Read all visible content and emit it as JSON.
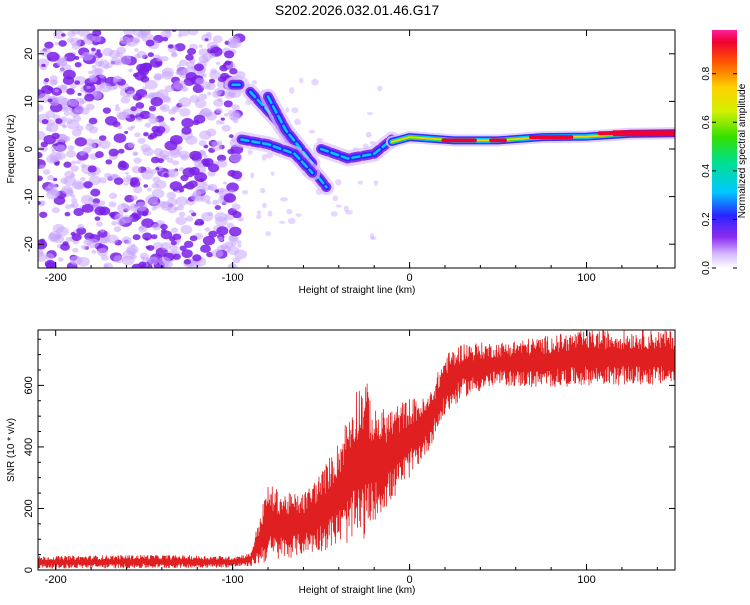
{
  "title": "S202.2026.032.01.46.G17",
  "colors": {
    "snr_line": "#e02020",
    "frame": "#000000",
    "scatter": "#c9a6ff",
    "scatter_dark": "#7a1ee8"
  },
  "chart_data": [
    {
      "type": "heatmap",
      "title": "S202.2026.032.01.46.G17",
      "xlabel": "Height of straight line (km)",
      "ylabel": "Frequency (Hz)",
      "xlim": [
        -210,
        150
      ],
      "ylim": [
        -25,
        25
      ],
      "xticks": [
        -200,
        -100,
        0,
        100
      ],
      "yticks": [
        -20,
        -10,
        0,
        10,
        20
      ],
      "colorbar": {
        "label": "Normalized spectral amplitude",
        "range": [
          0,
          0.98
        ],
        "ticks": [
          0.0,
          0.2,
          0.4,
          0.6,
          0.8
        ]
      },
      "features": [
        {
          "name": "noise-region",
          "x_range": [
            -210,
            -95
          ],
          "y_range": [
            -25,
            25
          ],
          "amplitude": 0.05
        },
        {
          "name": "dominant-ridge",
          "points": [
            [
              -10,
              1.5
            ],
            [
              0,
              2.5
            ],
            [
              25,
              1.8
            ],
            [
              50,
              1.8
            ],
            [
              75,
              2.5
            ],
            [
              100,
              2.6
            ],
            [
              125,
              3.2
            ],
            [
              150,
              3.3
            ]
          ],
          "amplitude": 0.95
        },
        {
          "name": "track-a",
          "points": [
            [
              -100,
              13.5
            ],
            [
              -95,
              13.5
            ]
          ],
          "amplitude": 0.3
        },
        {
          "name": "track-b",
          "points": [
            [
              -90,
              12
            ],
            [
              -75,
              6
            ],
            [
              -60,
              -2
            ],
            [
              -47,
              -8
            ]
          ],
          "amplitude": 0.35
        },
        {
          "name": "track-c",
          "points": [
            [
              -80,
              11
            ],
            [
              -70,
              4
            ],
            [
              -55,
              -3
            ]
          ],
          "amplitude": 0.3
        },
        {
          "name": "track-d",
          "points": [
            [
              -95,
              2
            ],
            [
              -80,
              1
            ],
            [
              -65,
              -1
            ],
            [
              -55,
              -5
            ]
          ],
          "amplitude": 0.3
        },
        {
          "name": "track-e",
          "points": [
            [
              -50,
              0
            ],
            [
              -35,
              -2
            ],
            [
              -20,
              -1
            ],
            [
              -10,
              2
            ]
          ],
          "amplitude": 0.4
        }
      ]
    },
    {
      "type": "line",
      "xlabel": "Height of straight line (km)",
      "ylabel": "SNR (10 * v/v)",
      "xlim": [
        -210,
        150
      ],
      "ylim": [
        0,
        780
      ],
      "xticks": [
        -200,
        -100,
        0,
        100
      ],
      "yticks": [
        0,
        200,
        400,
        600
      ],
      "series": [
        {
          "name": "SNR",
          "envelope": {
            "x": [
              -210,
              -150,
              -100,
              -90,
              -80,
              -70,
              -60,
              -50,
              -40,
              -30,
              -25,
              -20,
              -10,
              0,
              10,
              20,
              30,
              50,
              75,
              100,
              125,
              150
            ],
            "low": [
              5,
              5,
              8,
              12,
              25,
              35,
              50,
              60,
              80,
              90,
              100,
              160,
              220,
              300,
              380,
              500,
              560,
              600,
              590,
              600,
              600,
              600
            ],
            "high": [
              45,
              50,
              45,
              55,
              280,
              250,
              250,
              320,
              420,
              600,
              630,
              520,
              530,
              560,
              560,
              700,
              740,
              740,
              760,
              780,
              780,
              780
            ]
          }
        }
      ]
    }
  ]
}
